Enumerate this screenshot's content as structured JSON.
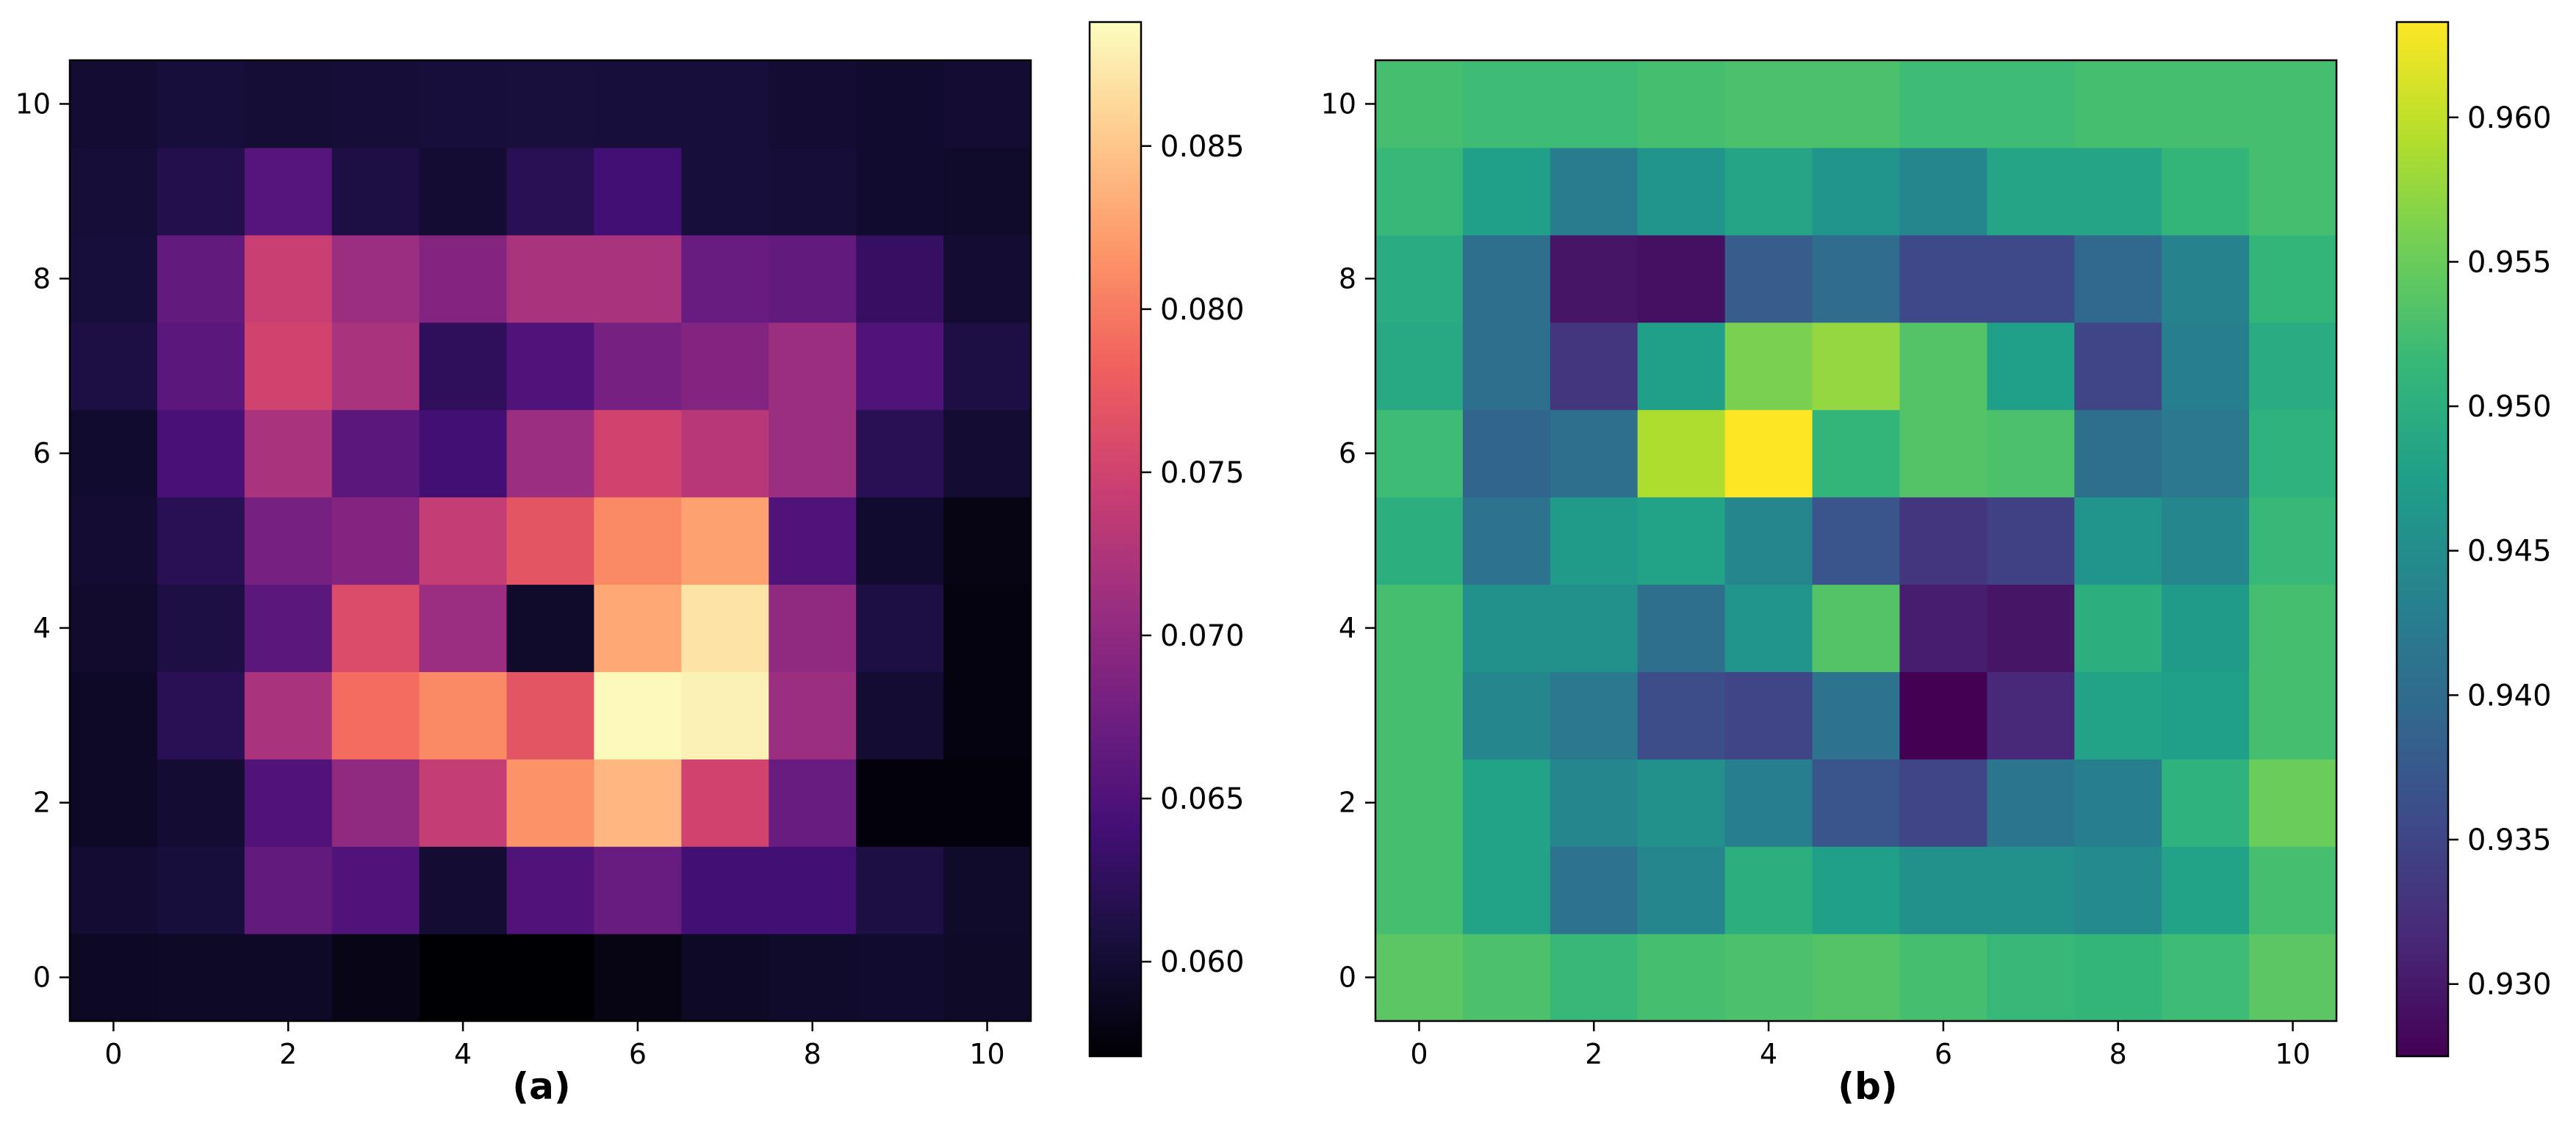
{
  "chart_data": [
    {
      "type": "heatmap",
      "panel_label": "(a)",
      "colormap": "magma",
      "x": [
        0,
        1,
        2,
        3,
        4,
        5,
        6,
        7,
        8,
        9,
        10
      ],
      "y": [
        0,
        1,
        2,
        3,
        4,
        5,
        6,
        7,
        8,
        9,
        10
      ],
      "x_ticks": [
        "0",
        "2",
        "4",
        "6",
        "8",
        "10"
      ],
      "y_ticks": [
        "0",
        "2",
        "4",
        "6",
        "8",
        "10"
      ],
      "xlim": [
        -0.5,
        10.5
      ],
      "ylim": [
        -0.5,
        10.5
      ],
      "color_range": [
        0.0571,
        0.0888
      ],
      "colorbar_ticks": [
        "0.060",
        "0.065",
        "0.070",
        "0.075",
        "0.080",
        "0.085"
      ],
      "colorbar_tick_values": [
        0.06,
        0.065,
        0.07,
        0.075,
        0.08,
        0.085
      ],
      "z": [
        [
          0.059,
          0.0592,
          0.0593,
          0.0582,
          0.0571,
          0.0571,
          0.0581,
          0.0591,
          0.0595,
          0.0598,
          0.0594
        ],
        [
          0.06,
          0.0605,
          0.0665,
          0.065,
          0.06,
          0.065,
          0.067,
          0.064,
          0.064,
          0.061,
          0.0595
        ],
        [
          0.0593,
          0.06,
          0.065,
          0.07,
          0.074,
          0.0815,
          0.084,
          0.075,
          0.067,
          0.0575,
          0.0575
        ],
        [
          0.0592,
          0.062,
          0.072,
          0.079,
          0.081,
          0.077,
          0.0885,
          0.088,
          0.071,
          0.06,
          0.0578
        ],
        [
          0.0597,
          0.061,
          0.066,
          0.076,
          0.071,
          0.0595,
          0.083,
          0.087,
          0.07,
          0.061,
          0.0578
        ],
        [
          0.06,
          0.062,
          0.068,
          0.069,
          0.074,
          0.077,
          0.081,
          0.0825,
          0.065,
          0.0598,
          0.0581
        ],
        [
          0.0598,
          0.0645,
          0.072,
          0.066,
          0.064,
          0.071,
          0.075,
          0.073,
          0.071,
          0.062,
          0.06
        ],
        [
          0.061,
          0.066,
          0.075,
          0.072,
          0.0625,
          0.065,
          0.068,
          0.069,
          0.071,
          0.065,
          0.061
        ],
        [
          0.0605,
          0.0665,
          0.0745,
          0.071,
          0.069,
          0.072,
          0.072,
          0.067,
          0.0665,
          0.063,
          0.06
        ],
        [
          0.0603,
          0.0615,
          0.0655,
          0.061,
          0.06,
          0.062,
          0.064,
          0.0605,
          0.0603,
          0.0598,
          0.0595
        ],
        [
          0.06,
          0.0605,
          0.0602,
          0.0603,
          0.0605,
          0.0606,
          0.0605,
          0.0605,
          0.06,
          0.0598,
          0.06
        ]
      ]
    },
    {
      "type": "heatmap",
      "panel_label": "(b)",
      "colormap": "viridis",
      "x": [
        0,
        1,
        2,
        3,
        4,
        5,
        6,
        7,
        8,
        9,
        10
      ],
      "y": [
        0,
        1,
        2,
        3,
        4,
        5,
        6,
        7,
        8,
        9,
        10
      ],
      "x_ticks": [
        "0",
        "2",
        "4",
        "6",
        "8",
        "10"
      ],
      "y_ticks": [
        "0",
        "2",
        "4",
        "6",
        "8",
        "10"
      ],
      "xlim": [
        -0.5,
        10.5
      ],
      "ylim": [
        -0.5,
        10.5
      ],
      "color_range": [
        0.9275,
        0.9633
      ],
      "colorbar_ticks": [
        "0.930",
        "0.935",
        "0.940",
        "0.945",
        "0.950",
        "0.955",
        "0.960"
      ],
      "colorbar_tick_values": [
        0.93,
        0.935,
        0.94,
        0.945,
        0.95,
        0.955,
        0.96
      ],
      "z": [
        [
          0.954,
          0.953,
          0.9515,
          0.9525,
          0.953,
          0.9535,
          0.9525,
          0.9515,
          0.951,
          0.952,
          0.954
        ],
        [
          0.9525,
          0.948,
          0.941,
          0.944,
          0.95,
          0.9475,
          0.9455,
          0.9455,
          0.9445,
          0.948,
          0.9525
        ],
        [
          0.9525,
          0.948,
          0.944,
          0.9455,
          0.943,
          0.937,
          0.935,
          0.9415,
          0.943,
          0.9505,
          0.955
        ],
        [
          0.9525,
          0.944,
          0.942,
          0.936,
          0.935,
          0.941,
          0.9275,
          0.9315,
          0.948,
          0.9475,
          0.9525
        ],
        [
          0.9525,
          0.9455,
          0.9455,
          0.9405,
          0.946,
          0.9535,
          0.9305,
          0.9295,
          0.95,
          0.947,
          0.9525
        ],
        [
          0.95,
          0.941,
          0.947,
          0.948,
          0.944,
          0.937,
          0.933,
          0.9345,
          0.946,
          0.944,
          0.9515
        ],
        [
          0.952,
          0.939,
          0.9405,
          0.959,
          0.9633,
          0.951,
          0.9535,
          0.953,
          0.9405,
          0.942,
          0.9505
        ],
        [
          0.949,
          0.9405,
          0.933,
          0.9475,
          0.956,
          0.9575,
          0.9535,
          0.9475,
          0.935,
          0.943,
          0.9495
        ],
        [
          0.9495,
          0.9405,
          0.9295,
          0.929,
          0.938,
          0.94,
          0.9355,
          0.9355,
          0.9395,
          0.9435,
          0.951
        ],
        [
          0.9515,
          0.9475,
          0.9425,
          0.946,
          0.9485,
          0.946,
          0.944,
          0.9485,
          0.9485,
          0.951,
          0.9525
        ],
        [
          0.9525,
          0.952,
          0.952,
          0.9525,
          0.953,
          0.953,
          0.952,
          0.952,
          0.9525,
          0.9525,
          0.9525
        ]
      ]
    }
  ]
}
